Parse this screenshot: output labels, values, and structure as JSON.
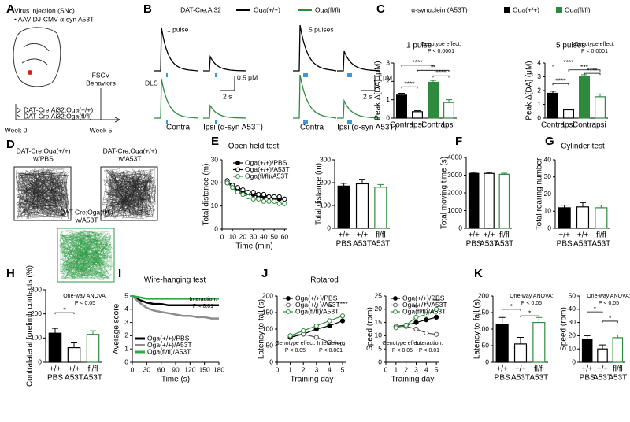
{
  "figure": {
    "panel_letters": [
      "A",
      "B",
      "C",
      "D",
      "E",
      "F",
      "G",
      "H",
      "I",
      "J",
      "K"
    ],
    "a": {
      "injection": "Virus injection (SNc)",
      "virus": "• AAV-DJ-CMV-α-syn A53T",
      "tests": [
        "FSCV",
        "Behaviors"
      ],
      "genotypes": [
        "DAT-Cre;Ai32;Oga(+/+)",
        "DAT-Cre;Ai32;Oga(fl/fl)"
      ],
      "weeks": [
        "Week 0",
        "Week 5"
      ]
    },
    "b": {
      "mouse": "DAT-Cre;Ai32",
      "legend": [
        "Oga(+/+)",
        "Oga(fl/fl)"
      ],
      "stimuli": [
        "1 pulse",
        "5 pulses"
      ],
      "region": "DLS",
      "scale_1": [
        "0.5 μM",
        "2 s"
      ],
      "scale_5": [
        "1 μM",
        "2 s"
      ],
      "sides": [
        "Contra",
        "Ipsi (α-syn A53T)",
        "Contra",
        "Ipsi (α-syn A53T)"
      ]
    },
    "c": {
      "header": "α-synuclein (A53T)",
      "legend": [
        "Oga(+/+)",
        "Oga(fl/fl)"
      ]
    },
    "d": {
      "groups": [
        [
          "DAT-Cre;Oga(+/+)",
          "w/PBS"
        ],
        [
          "DAT-Cre;Oga(+/+)",
          "w/A53T"
        ],
        [
          "DAT-Cre;Oga(fl/fl)",
          "w/A53T"
        ]
      ]
    }
  },
  "chart_data": [
    {
      "type": "bar",
      "title": "1 pulse",
      "ylabel": "Peak Δ[DA] (μM)",
      "categories": [
        "Contra",
        "Ipsi",
        "Contra",
        "Ipsi"
      ],
      "values": [
        1.25,
        0.35,
        1.95,
        0.85
      ],
      "errors": [
        0.1,
        0.05,
        0.1,
        0.15
      ],
      "colors": [
        "#000000",
        "#ffffff",
        "#2e8b3e",
        "#ffffff"
      ],
      "edgecolors": [
        "#000000",
        "#000000",
        "#2e8b3e",
        "#2e8b3e"
      ],
      "ylim": [
        0,
        3
      ],
      "yticks": [
        0,
        1,
        2,
        3
      ],
      "annotations": [
        "Genotype effect:",
        "P < 0.0001"
      ],
      "significance": [
        "****",
        "**",
        "****",
        "****"
      ]
    },
    {
      "type": "bar",
      "title": "5 pulses",
      "ylabel": "Peak Δ[DA] (μM)",
      "categories": [
        "Contra",
        "Ipsi",
        "Contra",
        "Ipsi"
      ],
      "values": [
        1.8,
        0.6,
        3.0,
        1.55
      ],
      "errors": [
        0.15,
        0.05,
        0.15,
        0.2
      ],
      "colors": [
        "#000000",
        "#ffffff",
        "#2e8b3e",
        "#ffffff"
      ],
      "edgecolors": [
        "#000000",
        "#000000",
        "#2e8b3e",
        "#2e8b3e"
      ],
      "ylim": [
        0,
        4
      ],
      "yticks": [
        0,
        1,
        2,
        3,
        4
      ],
      "annotations": [
        "Genotype effect:",
        "P < 0.0001"
      ],
      "significance": [
        "****",
        "***",
        "****",
        "****"
      ]
    },
    {
      "type": "line",
      "title": "Open field test",
      "xlabel": "Time (min)",
      "ylabel": "Total distance (m)",
      "x": [
        5,
        10,
        15,
        20,
        25,
        30,
        35,
        40,
        45,
        50,
        55,
        60
      ],
      "xlim": [
        0,
        62
      ],
      "xticks": [
        0,
        10,
        20,
        30,
        40,
        50,
        60
      ],
      "ylim": [
        0,
        30
      ],
      "yticks": [
        0,
        10,
        20,
        30
      ],
      "markers": true,
      "series": [
        {
          "name": "Oga(+/+)/PBS",
          "color": "#000000",
          "marker_fill": "#000000",
          "values": [
            20,
            19,
            17,
            16,
            15,
            15,
            14,
            14,
            14,
            13,
            13,
            13
          ]
        },
        {
          "name": "Oga(+/+)/A53T",
          "color": "#000000",
          "marker_fill": "#ffffff",
          "values": [
            21,
            19,
            18,
            17,
            16,
            16,
            15,
            15,
            14,
            14,
            14,
            13
          ]
        },
        {
          "name": "Oga(fl/fl)/A53T",
          "color": "#2e8b3e",
          "marker_fill": "#ffffff",
          "values": [
            20,
            18,
            16,
            15,
            14,
            13,
            13,
            12,
            12,
            12,
            11,
            11
          ]
        }
      ]
    },
    {
      "type": "bar",
      "ylabel": "Total distance (m)",
      "categories": [
        "+/+",
        "+/+",
        "fl/fl"
      ],
      "category_groups": [
        "PBS",
        "A53T",
        "A53T"
      ],
      "values": [
        185,
        195,
        180
      ],
      "errors": [
        12,
        20,
        12
      ],
      "colors": [
        "#000000",
        "#ffffff",
        "#ffffff"
      ],
      "edgecolors": [
        "#000000",
        "#000000",
        "#2e8b3e"
      ],
      "ylim": [
        0,
        300
      ],
      "yticks": [
        0,
        100,
        200,
        300
      ]
    },
    {
      "type": "bar",
      "ylabel": "Total moving time (s)",
      "categories": [
        "+/+",
        "+/+",
        "fl/fl"
      ],
      "category_groups": [
        "PBS",
        "A53T",
        "A53T"
      ],
      "values": [
        3100,
        3100,
        3050
      ],
      "errors": [
        60,
        60,
        60
      ],
      "colors": [
        "#000000",
        "#ffffff",
        "#ffffff"
      ],
      "edgecolors": [
        "#000000",
        "#000000",
        "#2e8b3e"
      ],
      "ylim": [
        0,
        4000
      ],
      "yticks": [
        0,
        1000,
        2000,
        3000,
        4000
      ]
    },
    {
      "type": "bar",
      "title": "Cylinder test",
      "ylabel": "Total rearing number",
      "categories": [
        "+/+",
        "+/+",
        "fl/fl"
      ],
      "category_groups": [
        "PBS",
        "A53T",
        "A53T"
      ],
      "values": [
        12,
        12.5,
        12
      ],
      "errors": [
        1.5,
        2.5,
        1.5
      ],
      "colors": [
        "#000000",
        "#ffffff",
        "#ffffff"
      ],
      "edgecolors": [
        "#000000",
        "#000000",
        "#2e8b3e"
      ],
      "ylim": [
        0,
        40
      ],
      "yticks": [
        0,
        10,
        20,
        30,
        40
      ]
    },
    {
      "type": "bar",
      "ylabel": "Contralateral forelimb contacts (%)",
      "categories": [
        "+/+",
        "+/+",
        "fl/fl"
      ],
      "category_groups": [
        "PBS",
        "A53T",
        "A53T"
      ],
      "values": [
        120,
        60,
        115
      ],
      "errors": [
        20,
        20,
        15
      ],
      "colors": [
        "#000000",
        "#ffffff",
        "#ffffff"
      ],
      "edgecolors": [
        "#000000",
        "#000000",
        "#2e8b3e"
      ],
      "ylim": [
        0,
        300
      ],
      "yticks": [
        0,
        100,
        200,
        300
      ],
      "annotations": [
        "One-way ANOVA:",
        "P < 0.05"
      ],
      "significance": [
        "*"
      ]
    },
    {
      "type": "line",
      "title": "Wire-hanging test",
      "xlabel": "Time (s)",
      "ylabel": "Average score",
      "x": [
        0,
        15,
        30,
        45,
        60,
        75,
        90,
        105,
        120,
        135,
        150,
        165,
        180
      ],
      "xlim": [
        0,
        180
      ],
      "xticks": [
        0,
        30,
        60,
        90,
        120,
        150,
        180
      ],
      "ylim": [
        0,
        5
      ],
      "yticks": [
        0,
        1,
        2,
        3,
        4,
        5
      ],
      "markers": false,
      "annotations": [
        "Interaction:",
        "P < 0.01"
      ],
      "series": [
        {
          "name": "Oga(+/+)/PBS",
          "color": "#000000",
          "values": [
            5,
            4.7,
            4.5,
            4.4,
            4.4,
            4.3,
            4.3,
            4.3,
            4.3,
            4.3,
            4.3,
            4.3,
            4.3
          ]
        },
        {
          "name": "Oga(+/+)/A53T",
          "color": "#8c8c8c",
          "values": [
            5,
            4.5,
            4.1,
            3.9,
            3.8,
            3.7,
            3.6,
            3.5,
            3.5,
            3.4,
            3.4,
            3.3,
            3.3
          ]
        },
        {
          "name": "Oga(fl/fl)/A53T",
          "color": "#2eaa44",
          "values": [
            5,
            4.9,
            4.8,
            4.8,
            4.8,
            4.8,
            4.8,
            4.8,
            4.8,
            4.8,
            4.8,
            4.8,
            4.8
          ]
        }
      ]
    },
    {
      "type": "line",
      "title": "Rotarod",
      "xlabel": "Training day",
      "ylabel": "Latency to fall (s)",
      "x": [
        1,
        2,
        3,
        4,
        5
      ],
      "xlim": [
        0,
        5.3
      ],
      "xticks": [
        0,
        1,
        2,
        3,
        4,
        5
      ],
      "ylim": [
        0,
        200
      ],
      "yticks": [
        0,
        50,
        100,
        150,
        200
      ],
      "markers": true,
      "annotations": [
        "Genotype effect:",
        "P < 0.05",
        "Interaction:",
        "P < 0.001"
      ],
      "significance": [
        "*",
        "**",
        "****"
      ],
      "series": [
        {
          "name": "Oga(+/+)/PBS",
          "color": "#000000",
          "marker_fill": "#000000",
          "values": [
            75,
            85,
            100,
            110,
            125
          ]
        },
        {
          "name": "Oga(+/+)/A53T",
          "color": "#555555",
          "marker_fill": "#ffffff",
          "values": [
            80,
            85,
            75,
            60,
            55
          ]
        },
        {
          "name": "Oga(fl/fl)/A53T",
          "color": "#2e8b3e",
          "marker_fill": "#ffffff",
          "values": [
            80,
            95,
            110,
            125,
            140
          ]
        }
      ]
    },
    {
      "type": "line",
      "xlabel": "Training day",
      "ylabel": "Speed (rpm)",
      "x": [
        1,
        2,
        3,
        4,
        5
      ],
      "xlim": [
        0,
        5.3
      ],
      "xticks": [
        0,
        1,
        2,
        3,
        4,
        5
      ],
      "ylim": [
        0,
        25
      ],
      "yticks": [
        0,
        5,
        10,
        15,
        20,
        25
      ],
      "markers": true,
      "annotations": [
        "Genotype effect:",
        "P < 0.05",
        "Interaction:",
        "P < 0.01"
      ],
      "significance": [
        "**",
        "**",
        "***"
      ],
      "series": [
        {
          "name": "Oga(+/+)/PBS",
          "color": "#000000",
          "marker_fill": "#000000",
          "values": [
            13.5,
            14,
            15,
            16,
            17
          ]
        },
        {
          "name": "Oga(+/+)/A53T",
          "color": "#555555",
          "marker_fill": "#ffffff",
          "values": [
            13.5,
            13.5,
            12.5,
            11,
            10.5
          ]
        },
        {
          "name": "Oga(fl/fl)/A53T",
          "color": "#2e8b3e",
          "marker_fill": "#ffffff",
          "values": [
            13,
            14,
            17,
            18,
            20
          ]
        }
      ]
    },
    {
      "type": "bar",
      "ylabel": "Latency to fall (s)",
      "categories": [
        "+/+",
        "+/+",
        "fl/fl"
      ],
      "category_groups": [
        "PBS",
        "A53T",
        "A53T"
      ],
      "values": [
        115,
        55,
        120
      ],
      "errors": [
        20,
        20,
        15
      ],
      "colors": [
        "#000000",
        "#ffffff",
        "#ffffff"
      ],
      "edgecolors": [
        "#000000",
        "#000000",
        "#2e8b3e"
      ],
      "ylim": [
        0,
        200
      ],
      "yticks": [
        0,
        50,
        100,
        150,
        200
      ],
      "annotations": [
        "One-way ANOVA:",
        "P < 0.05"
      ],
      "significance": [
        "*",
        "*"
      ]
    },
    {
      "type": "bar",
      "ylabel": "Speed (rpm)",
      "categories": [
        "+/+",
        "+/+",
        "fl/fl"
      ],
      "category_groups": [
        "PBS",
        "A53T",
        "A53T"
      ],
      "values": [
        17.5,
        10,
        18.5
      ],
      "errors": [
        2.5,
        3,
        2
      ],
      "colors": [
        "#000000",
        "#ffffff",
        "#ffffff"
      ],
      "edgecolors": [
        "#000000",
        "#000000",
        "#2e8b3e"
      ],
      "ylim": [
        0,
        50
      ],
      "yticks": [
        0,
        10,
        20,
        30,
        40,
        50
      ],
      "annotations": [
        "One-way ANOVA:",
        "P < 0.05"
      ],
      "significance": [
        "*",
        "*"
      ]
    }
  ]
}
